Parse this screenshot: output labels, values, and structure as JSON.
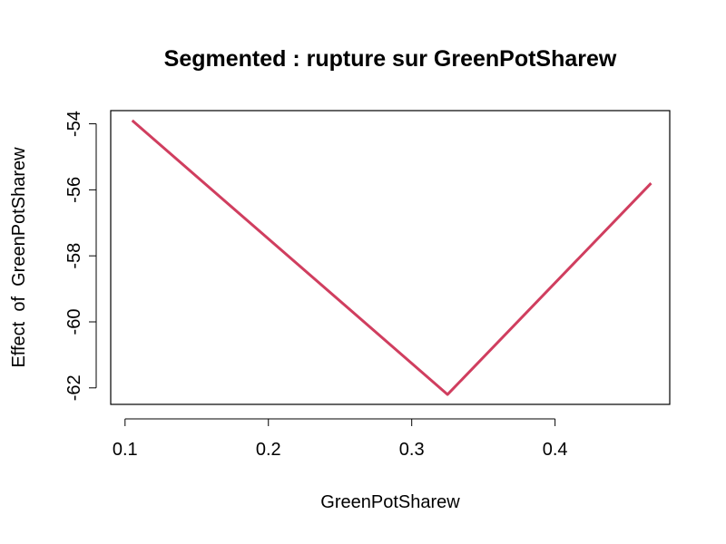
{
  "chart_data": {
    "type": "line",
    "title": "Segmented : rupture sur GreenPotSharew",
    "xlabel": "GreenPotSharew",
    "ylabel": "Effect  of  GreenPotSharew",
    "xlim": [
      0.09,
      0.48
    ],
    "ylim": [
      -62.5,
      -53.6
    ],
    "x_ticks": [
      0.1,
      0.2,
      0.3,
      0.4
    ],
    "x_tick_labels": [
      "0.1",
      "0.2",
      "0.3",
      "0.4"
    ],
    "y_ticks": [
      -54,
      -56,
      -58,
      -60,
      -62
    ],
    "y_tick_labels": [
      "-54",
      "-56",
      "-58",
      "-60",
      "-62"
    ],
    "grid": false,
    "series": [
      {
        "color": "#d03e5f",
        "x": [
          0.105,
          0.325,
          0.467
        ],
        "y": [
          -53.9,
          -62.2,
          -55.8
        ]
      }
    ]
  }
}
